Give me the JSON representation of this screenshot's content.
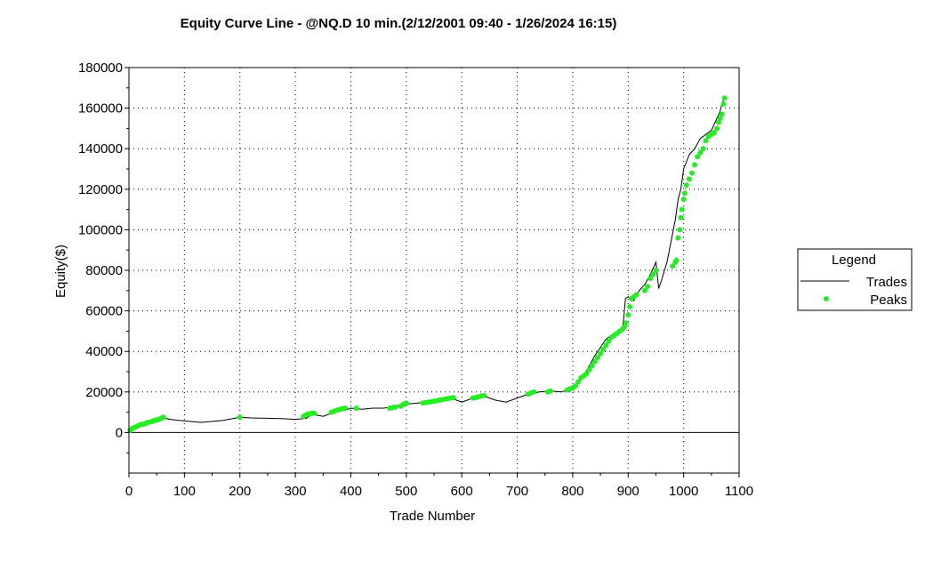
{
  "chart_data": {
    "type": "line",
    "title": "Equity Curve Line - @NQ.D 10 min.(2/12/2001 09:40 - 1/26/2024 16:15)",
    "xlabel": "Trade Number",
    "ylabel": "Equity($)",
    "xlim": [
      0,
      1100
    ],
    "ylim": [
      -20000,
      180000
    ],
    "x_ticks": [
      0,
      100,
      200,
      300,
      400,
      500,
      600,
      700,
      800,
      900,
      1000,
      1100
    ],
    "x_tick_labels": [
      "0",
      "100",
      "200",
      "300",
      "400",
      "500",
      "600",
      "700",
      "800",
      "900",
      "1000",
      "1100"
    ],
    "y_ticks": [
      0,
      20000,
      40000,
      60000,
      80000,
      100000,
      120000,
      140000,
      160000,
      180000
    ],
    "y_tick_labels": [
      "0",
      "20000",
      "40000",
      "60000",
      "80000",
      "100000",
      "120000",
      "140000",
      "160000",
      "180000"
    ],
    "grid": true,
    "legend_position": "right",
    "legend": {
      "title": "Legend",
      "entries": [
        "Trades",
        "Peaks"
      ]
    },
    "series": [
      {
        "name": "Trades",
        "type": "line",
        "color": "#000000",
        "x": [
          0,
          10,
          20,
          30,
          40,
          50,
          60,
          65,
          75,
          90,
          110,
          130,
          150,
          170,
          190,
          200,
          220,
          250,
          280,
          300,
          320,
          330,
          350,
          370,
          390,
          400,
          420,
          440,
          460,
          480,
          500,
          520,
          540,
          560,
          580,
          600,
          620,
          640,
          660,
          680,
          700,
          720,
          740,
          760,
          780,
          800,
          810,
          820,
          830,
          840,
          850,
          860,
          870,
          880,
          890,
          895,
          900,
          910,
          920,
          930,
          940,
          950,
          955,
          960,
          970,
          980,
          985,
          990,
          995,
          1000,
          1010,
          1020,
          1030,
          1040,
          1050,
          1060,
          1065,
          1070,
          1075
        ],
        "y": [
          0,
          2500,
          4000,
          5000,
          5500,
          6500,
          7500,
          7000,
          6500,
          6000,
          5500,
          5000,
          5500,
          6000,
          7000,
          7500,
          7200,
          7000,
          6800,
          6500,
          7000,
          9000,
          8000,
          10000,
          11000,
          12000,
          11500,
          12000,
          12000,
          13000,
          14000,
          14500,
          15000,
          16000,
          17000,
          15000,
          17000,
          18000,
          16000,
          15000,
          17000,
          19000,
          20000,
          20500,
          20000,
          22000,
          25000,
          28000,
          33000,
          38000,
          42000,
          46000,
          48000,
          50000,
          50000,
          66000,
          67000,
          65000,
          70000,
          73000,
          78000,
          84000,
          71000,
          75000,
          84000,
          98000,
          105000,
          115000,
          120000,
          130000,
          137000,
          140000,
          145000,
          147000,
          149000,
          155000,
          158000,
          163000,
          166000
        ]
      },
      {
        "name": "Peaks",
        "type": "scatter",
        "color": "#22ee22",
        "x": [
          2,
          6,
          10,
          14,
          18,
          22,
          26,
          30,
          34,
          38,
          42,
          46,
          50,
          54,
          58,
          62,
          200,
          315,
          318,
          322,
          326,
          330,
          334,
          365,
          370,
          375,
          380,
          385,
          390,
          410,
          470,
          475,
          480,
          490,
          495,
          500,
          530,
          535,
          540,
          545,
          550,
          555,
          560,
          565,
          570,
          575,
          580,
          585,
          620,
          625,
          630,
          635,
          640,
          720,
          725,
          730,
          755,
          760,
          790,
          795,
          800,
          805,
          810,
          815,
          820,
          825,
          830,
          835,
          840,
          845,
          850,
          855,
          860,
          865,
          870,
          875,
          880,
          885,
          890,
          893,
          896,
          900,
          903,
          906,
          910,
          915,
          930,
          935,
          940,
          945,
          950,
          980,
          985,
          987,
          990,
          993,
          995,
          997,
          1000,
          1002,
          1005,
          1010,
          1015,
          1020,
          1025,
          1030,
          1035,
          1040,
          1045,
          1050,
          1055,
          1060,
          1063,
          1066,
          1069,
          1072,
          1074
        ],
        "y": [
          1000,
          2000,
          2500,
          3000,
          3500,
          4000,
          4000,
          4500,
          5000,
          5200,
          5500,
          6000,
          6200,
          6500,
          7000,
          7500,
          7500,
          8000,
          8500,
          9000,
          9300,
          9500,
          9500,
          10000,
          10500,
          11000,
          11500,
          11800,
          12000,
          12000,
          12000,
          12300,
          12500,
          13000,
          14000,
          14500,
          14500,
          14800,
          15000,
          15200,
          15500,
          15700,
          16000,
          16200,
          16500,
          16800,
          17000,
          17200,
          17000,
          17300,
          17600,
          18000,
          18200,
          19000,
          19500,
          20000,
          20000,
          20500,
          21000,
          21500,
          22000,
          23000,
          25000,
          27000,
          28000,
          29000,
          31000,
          33000,
          35000,
          37000,
          39000,
          41000,
          43000,
          45000,
          47000,
          48000,
          49000,
          50000,
          51000,
          52000,
          54000,
          58000,
          62000,
          66000,
          67000,
          68000,
          70000,
          72000,
          76000,
          78000,
          80000,
          82000,
          84000,
          85000,
          96000,
          100000,
          106000,
          110000,
          115000,
          118000,
          122000,
          125000,
          128000,
          132000,
          136000,
          138000,
          140000,
          144000,
          146000,
          147000,
          148000,
          150000,
          153000,
          155000,
          157000,
          162000,
          165000
        ]
      }
    ]
  }
}
